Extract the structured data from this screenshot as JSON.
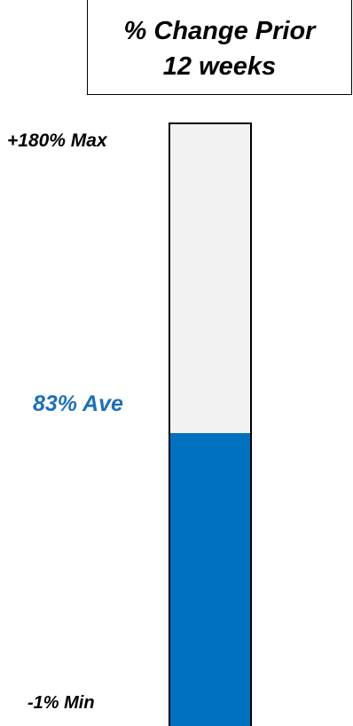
{
  "title": {
    "line1": "% Change Prior",
    "line2": "12 weeks"
  },
  "chart_data": {
    "type": "bar",
    "title": "% Change Prior 12 weeks",
    "max": {
      "value": 180,
      "label": "+180% Max"
    },
    "average": {
      "value": 83,
      "label": "83% Ave"
    },
    "min": {
      "value": -1,
      "label": "-1% Min"
    },
    "ylim": [
      -1,
      180
    ],
    "grid": false
  },
  "colors": {
    "fill": "#0070c0",
    "track": "#f2f2f2",
    "ave_label": "#1b6fbe",
    "border": "#000000"
  }
}
